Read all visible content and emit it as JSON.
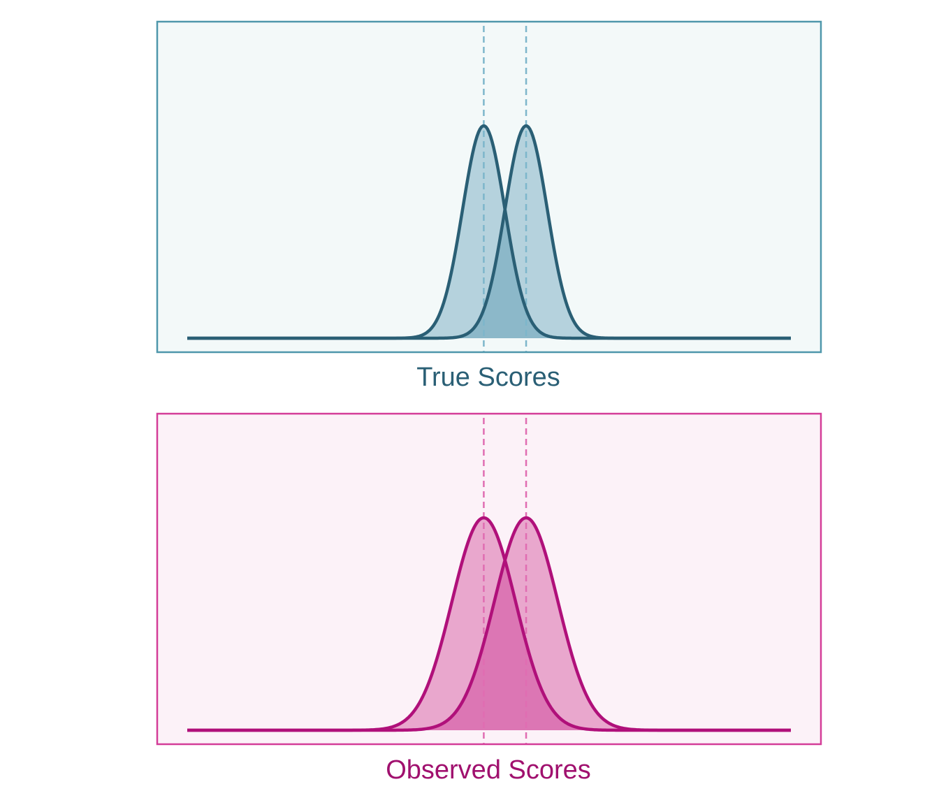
{
  "colors": {
    "true_frame": "#4f97ab",
    "true_bg": "#f3f9f9",
    "true_fill": "#b5d2dd",
    "true_overlap": "#8cb8c9",
    "true_line": "#2a5f75",
    "true_ref": "#7db6cb",
    "true_label": "#2a5f75",
    "obs_frame": "#d43d98",
    "obs_bg": "#fcf2f8",
    "obs_fill": "#e9a7cd",
    "obs_overlap": "#dc76b4",
    "obs_line": "#b0107a",
    "obs_ref": "#e06db2",
    "obs_label": "#a0106e"
  },
  "panels": [
    {
      "id": "true",
      "label": "True Scores",
      "distributions": [
        {
          "mean": -0.1,
          "sd": 0.1
        },
        {
          "mean": 0.1,
          "sd": 0.1
        }
      ],
      "reference_lines": [
        -0.1,
        0.1
      ]
    },
    {
      "id": "observed",
      "label": "Observed Scores",
      "distributions": [
        {
          "mean": -0.1,
          "sd": 0.15
        },
        {
          "mean": 0.1,
          "sd": 0.15
        }
      ],
      "reference_lines": [
        -0.1,
        0.1
      ]
    }
  ],
  "x_range": [
    -1.5,
    1.35
  ]
}
